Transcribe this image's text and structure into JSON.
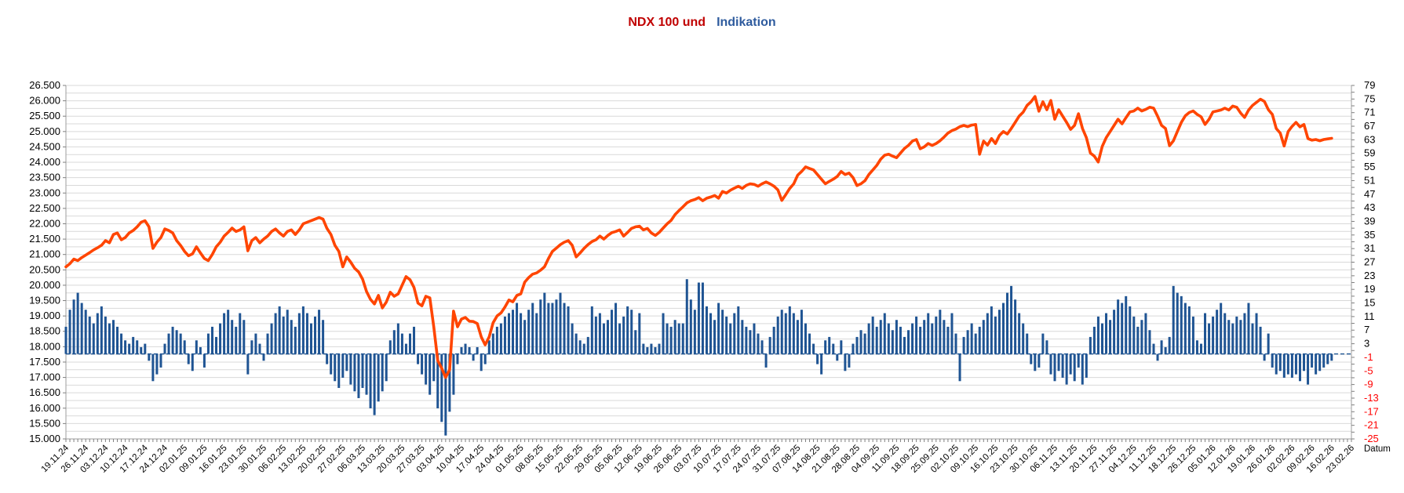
{
  "title": {
    "part1": "NDX 100 und",
    "part2": "Indikation"
  },
  "colors": {
    "title_part1": "#C00000",
    "title_part2": "#2E5B9E",
    "line": "#FF4500",
    "bar": "#1F5493",
    "baseline_dash": "#1F5493",
    "gridline": "#D9D9D9",
    "axis": "#9E9E9E",
    "tick": "#808080",
    "label": "#000000",
    "negative_label": "#FF0000"
  },
  "axes": {
    "left_ticks": [
      "26.500",
      "26.000",
      "25.500",
      "25.000",
      "24.500",
      "24.000",
      "23.500",
      "23.000",
      "22.500",
      "22.000",
      "21.500",
      "21.000",
      "20.500",
      "20.000",
      "19.500",
      "19.000",
      "18.500",
      "18.000",
      "17.500",
      "17.000",
      "16.500",
      "16.000",
      "15.500",
      "15.000"
    ],
    "right_ticks": [
      "79",
      "75",
      "71",
      "67",
      "63",
      "59",
      "55",
      "51",
      "47",
      "43",
      "39",
      "35",
      "31",
      "27",
      "23",
      "19",
      "15",
      "11",
      "7",
      "3",
      "-1",
      "-5",
      "-9",
      "-13",
      "-17",
      "-21",
      "-25"
    ],
    "x_labels": [
      "19.11.24",
      "26.11.24",
      "03.12.24",
      "10.12.24",
      "17.12.24",
      "24.12.24",
      "02.01.25",
      "09.01.25",
      "16.01.25",
      "23.01.25",
      "30.01.25",
      "06.02.25",
      "13.02.25",
      "20.02.25",
      "27.02.25",
      "06.03.25",
      "13.03.25",
      "20.03.25",
      "27.03.25",
      "03.04.25",
      "10.04.25",
      "17.04.25",
      "24.04.25",
      "01.05.25",
      "08.05.25",
      "15.05.25",
      "22.05.25",
      "29.05.25",
      "05.06.25",
      "12.06.25",
      "19.06.25",
      "26.06.25",
      "03.07.25",
      "10.07.25",
      "17.07.25",
      "24.07.25",
      "31.07.25",
      "07.08.25",
      "14.08.25",
      "21.08.25",
      "28.08.25",
      "04.09.25",
      "11.09.25",
      "18.09.25",
      "25.09.25",
      "02.10.25",
      "09.10.25",
      "16.10.25",
      "23.10.25",
      "30.10.25",
      "06.11.25",
      "13.11.25",
      "20.11.25",
      "27.11.25",
      "04.12.25",
      "11.12.25",
      "18.12.25",
      "26.12.25",
      "05.01.26",
      "12.01.26",
      "19.01.26",
      "26.01.26",
      "02.02.26",
      "09.02.26",
      "16.02.26",
      "23.02.26"
    ],
    "x_title": "Datum",
    "left_range": [
      15000,
      26500
    ],
    "left_step": 500,
    "grid_step": 250,
    "right_range": [
      -25,
      79
    ],
    "right_step": 4
  },
  "chart_data": {
    "type": "line+bar",
    "slots": 326,
    "labels_every_slots": 5,
    "baseline": 0,
    "series": [
      {
        "name": "NDX 100",
        "type": "line",
        "axis": "left",
        "values": [
          20600,
          20700,
          20850,
          20800,
          20900,
          20980,
          21060,
          21150,
          21220,
          21300,
          21450,
          21380,
          21650,
          21700,
          21480,
          21550,
          21700,
          21780,
          21900,
          22050,
          22100,
          21900,
          21200,
          21400,
          21550,
          21830,
          21780,
          21700,
          21450,
          21290,
          21100,
          20960,
          21020,
          21250,
          21050,
          20870,
          20800,
          21000,
          21250,
          21400,
          21600,
          21720,
          21860,
          21750,
          21800,
          21900,
          21120,
          21450,
          21550,
          21380,
          21500,
          21600,
          21750,
          21830,
          21700,
          21600,
          21750,
          21800,
          21650,
          21800,
          22000,
          22050,
          22100,
          22150,
          22200,
          22150,
          21850,
          21650,
          21300,
          21100,
          20600,
          20920,
          20750,
          20550,
          20430,
          20200,
          19800,
          19540,
          19390,
          19670,
          19260,
          19450,
          19770,
          19640,
          19720,
          20000,
          20280,
          20180,
          19930,
          19420,
          19330,
          19640,
          19590,
          18650,
          17550,
          17300,
          17000,
          17250,
          19160,
          18650,
          18900,
          18950,
          18830,
          18820,
          18750,
          18320,
          18060,
          18320,
          18780,
          19000,
          19100,
          19290,
          19520,
          19460,
          19670,
          19720,
          20100,
          20250,
          20360,
          20400,
          20490,
          20600,
          20870,
          21100,
          21210,
          21320,
          21400,
          21450,
          21300,
          20920,
          21050,
          21200,
          21320,
          21420,
          21480,
          21600,
          21500,
          21620,
          21710,
          21750,
          21800,
          21600,
          21720,
          21850,
          21900,
          21920,
          21800,
          21850,
          21700,
          21620,
          21720,
          21860,
          22000,
          22110,
          22300,
          22430,
          22550,
          22680,
          22750,
          22790,
          22850,
          22750,
          22830,
          22870,
          22920,
          22830,
          23050,
          23000,
          23090,
          23160,
          23220,
          23150,
          23250,
          23300,
          23280,
          23220,
          23300,
          23360,
          23300,
          23220,
          23100,
          22760,
          22950,
          23150,
          23300,
          23580,
          23700,
          23850,
          23800,
          23750,
          23600,
          23450,
          23300,
          23380,
          23450,
          23540,
          23700,
          23600,
          23650,
          23500,
          23240,
          23300,
          23400,
          23600,
          23750,
          23900,
          24100,
          24230,
          24260,
          24200,
          24150,
          24300,
          24450,
          24550,
          24690,
          24740,
          24440,
          24500,
          24610,
          24550,
          24610,
          24700,
          24820,
          24950,
          25030,
          25080,
          25160,
          25200,
          25160,
          25210,
          25230,
          24260,
          24690,
          24560,
          24770,
          24610,
          24870,
          25000,
          24920,
          25100,
          25300,
          25500,
          25630,
          25850,
          25970,
          26140,
          25660,
          25970,
          25710,
          26010,
          25400,
          25710,
          25500,
          25300,
          25070,
          25200,
          25580,
          25100,
          24800,
          24300,
          24200,
          24010,
          24520,
          24800,
          25000,
          25200,
          25400,
          25250,
          25450,
          25640,
          25670,
          25760,
          25670,
          25720,
          25790,
          25760,
          25500,
          25200,
          25100,
          24540,
          24700,
          25000,
          25300,
          25510,
          25620,
          25670,
          25560,
          25480,
          25230,
          25400,
          25640,
          25670,
          25700,
          25760,
          25700,
          25830,
          25790,
          25600,
          25460,
          25700,
          25850,
          25950,
          26050,
          25980,
          25710,
          25560,
          25100,
          24950,
          24530,
          25000,
          25170,
          25300,
          25150,
          25230,
          24770,
          24720,
          24740,
          24700,
          24740,
          24760,
          24780
        ]
      },
      {
        "name": "Indikation",
        "type": "bar",
        "axis": "right",
        "values": [
          8,
          13,
          16,
          18,
          15,
          13,
          11,
          9,
          12,
          14,
          11,
          9,
          10,
          8,
          6,
          4,
          3,
          5,
          4,
          2,
          3,
          -2,
          -8,
          -6,
          -4,
          3,
          6,
          8,
          7,
          6,
          4,
          -3,
          -5,
          4,
          2,
          -4,
          6,
          8,
          5,
          9,
          12,
          13,
          10,
          8,
          12,
          10,
          -6,
          4,
          6,
          3,
          -2,
          6,
          9,
          12,
          14,
          11,
          13,
          10,
          8,
          12,
          14,
          12,
          9,
          11,
          13,
          10,
          -3,
          -6,
          -8,
          -10,
          -7,
          -5,
          -9,
          -11,
          -13,
          -10,
          -12,
          -16,
          -18,
          -14,
          -11,
          -8,
          4,
          7,
          9,
          6,
          3,
          6,
          8,
          -3,
          -6,
          -9,
          -12,
          -8,
          -16,
          -20,
          -24,
          -17,
          -12,
          -3,
          2,
          3,
          2,
          -2,
          2,
          -5,
          -3,
          4,
          6,
          8,
          9,
          11,
          12,
          13,
          15,
          12,
          10,
          13,
          15,
          12,
          16,
          18,
          15,
          15,
          16,
          18,
          15,
          14,
          9,
          6,
          4,
          3,
          5,
          14,
          11,
          12,
          9,
          10,
          13,
          15,
          9,
          11,
          14,
          13,
          7,
          12,
          3,
          2,
          3,
          2,
          3,
          12,
          9,
          8,
          10,
          9,
          9,
          22,
          16,
          13,
          21,
          21,
          14,
          12,
          10,
          15,
          13,
          11,
          9,
          12,
          14,
          10,
          8,
          7,
          9,
          6,
          4,
          -4,
          5,
          8,
          11,
          13,
          12,
          14,
          12,
          10,
          13,
          9,
          6,
          3,
          -3,
          -6,
          4,
          5,
          3,
          -2,
          4,
          -5,
          -4,
          3,
          5,
          7,
          6,
          9,
          11,
          8,
          10,
          12,
          9,
          7,
          10,
          8,
          5,
          7,
          9,
          11,
          8,
          10,
          12,
          9,
          11,
          13,
          10,
          8,
          12,
          6,
          -8,
          5,
          7,
          9,
          6,
          8,
          10,
          12,
          14,
          11,
          13,
          15,
          18,
          20,
          16,
          12,
          9,
          6,
          -3,
          -5,
          -4,
          6,
          4,
          -6,
          -8,
          -5,
          -7,
          -9,
          -6,
          -8,
          -4,
          -9,
          -7,
          5,
          8,
          11,
          9,
          12,
          10,
          13,
          16,
          15,
          17,
          14,
          11,
          8,
          10,
          12,
          7,
          3,
          -2,
          4,
          2,
          5,
          20,
          18,
          17,
          15,
          14,
          11,
          4,
          3,
          12,
          9,
          11,
          13,
          15,
          12,
          10,
          9,
          11,
          10,
          12,
          15,
          9,
          12,
          8,
          -2,
          6,
          -4,
          -6,
          -5,
          -7,
          -6,
          -7,
          -6,
          -8,
          -5,
          -9,
          -4,
          -6,
          -5,
          -4,
          -3,
          -2
        ]
      }
    ]
  }
}
